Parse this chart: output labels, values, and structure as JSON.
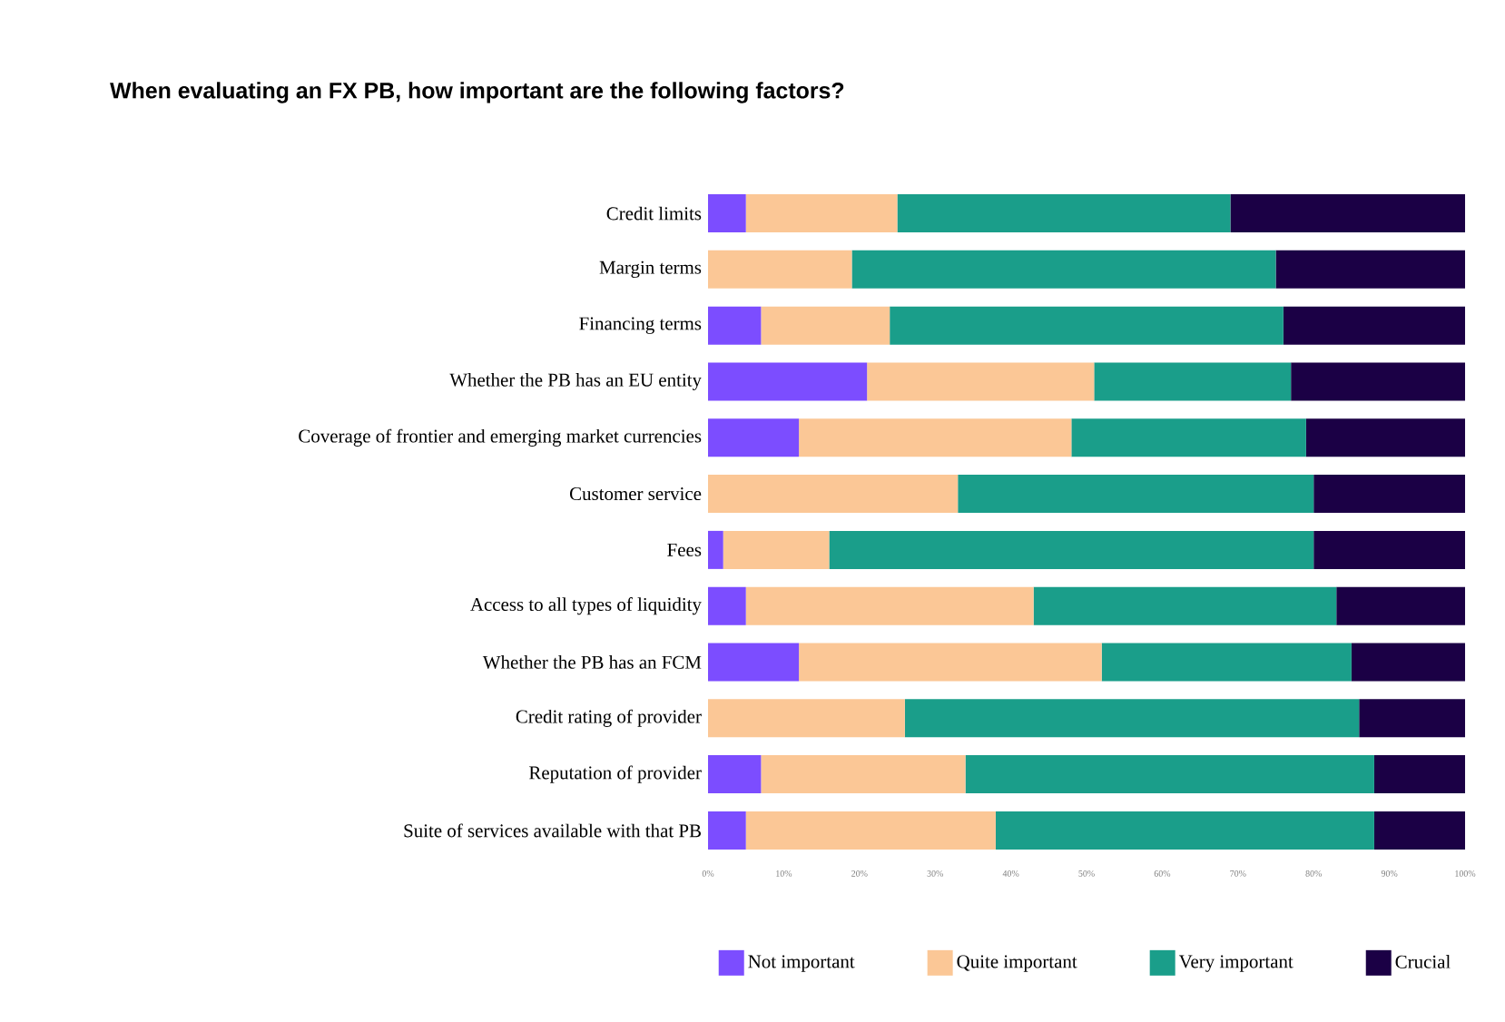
{
  "chart_data": {
    "type": "bar",
    "orientation": "horizontal",
    "stacked": true,
    "title": "When evaluating an FX PB, how important are the following factors?",
    "categories": [
      "Credit limits",
      "Margin terms",
      "Financing terms",
      "Whether the PB has an EU entity",
      "Coverage of frontier and emerging market currencies",
      "Customer service",
      "Fees",
      "Access to all types of liquidity",
      "Whether the PB has an FCM",
      "Credit rating of provider",
      "Reputation of provider",
      "Suite of services available with that PB"
    ],
    "series": [
      {
        "name": "Not important",
        "color": "#7c4dff",
        "values": [
          5,
          0,
          7,
          21,
          12,
          0,
          2,
          5,
          12,
          0,
          7,
          5
        ]
      },
      {
        "name": "Quite important",
        "color": "#fbc796",
        "values": [
          20,
          19,
          17,
          30,
          36,
          33,
          14,
          38,
          40,
          26,
          27,
          33
        ]
      },
      {
        "name": "Very important",
        "color": "#1a9e8a",
        "values": [
          44,
          56,
          52,
          26,
          31,
          47,
          64,
          40,
          33,
          60,
          54,
          50
        ]
      },
      {
        "name": "Crucial",
        "color": "#1b0045",
        "values": [
          31,
          25,
          24,
          23,
          21,
          20,
          20,
          17,
          15,
          14,
          12,
          12
        ]
      }
    ],
    "xlim": [
      0,
      100
    ],
    "xticks": [
      {
        "value": 0,
        "label": "0%"
      },
      {
        "value": 10,
        "label": "10%"
      },
      {
        "value": 20,
        "label": "20%"
      },
      {
        "value": 30,
        "label": "30%"
      },
      {
        "value": 40,
        "label": "40%"
      },
      {
        "value": 50,
        "label": "50%"
      },
      {
        "value": 60,
        "label": "60%"
      },
      {
        "value": 70,
        "label": "70%"
      },
      {
        "value": 80,
        "label": "80%"
      },
      {
        "value": 90,
        "label": "90%"
      },
      {
        "value": 100,
        "label": "100%"
      }
    ],
    "legend": "bottom"
  }
}
